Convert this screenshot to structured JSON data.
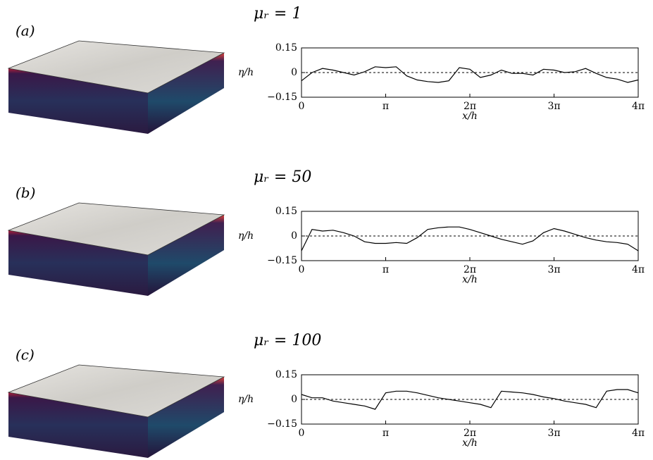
{
  "panel_labels": [
    "(a)",
    "(b)",
    "(c)"
  ],
  "chart_data": [
    {
      "type": "line",
      "title": "μᵣ = 1",
      "x_label": "x/h",
      "y_label": "η/h",
      "x": [
        0,
        0.393,
        0.785,
        1.178,
        1.571,
        1.963,
        2.356,
        2.749,
        3.142,
        3.534,
        3.927,
        4.32,
        4.712,
        5.105,
        5.498,
        5.89,
        6.283,
        6.676,
        7.069,
        7.461,
        7.854,
        8.247,
        8.639,
        9.032,
        9.425,
        9.817,
        10.21,
        10.603,
        10.996,
        11.388,
        11.781,
        12.174,
        12.566
      ],
      "series": [
        {
          "color": "#000000",
          "values": [
            -0.05,
            0.0,
            0.025,
            0.015,
            0.0,
            -0.015,
            0.005,
            0.035,
            0.03,
            0.035,
            -0.02,
            -0.045,
            -0.055,
            -0.06,
            -0.05,
            0.03,
            0.02,
            -0.03,
            -0.015,
            0.015,
            -0.005,
            -0.005,
            -0.015,
            0.02,
            0.015,
            0.0,
            0.005,
            0.025,
            -0.005,
            -0.03,
            -0.04,
            -0.06,
            -0.045
          ]
        }
      ],
      "xlim": [
        0,
        12.566
      ],
      "ylim": [
        -0.15,
        0.15
      ],
      "xticks": [
        0,
        {
          "value": 3.142,
          "label": "π"
        },
        {
          "value": 6.283,
          "label": "2π"
        },
        {
          "value": 9.425,
          "label": "3π"
        },
        {
          "value": 12.566,
          "label": "4π"
        }
      ],
      "yticks": [
        {
          "value": -0.15,
          "label": "−0.15"
        },
        0,
        0.15
      ],
      "hline": 0
    },
    {
      "type": "line",
      "title": "μᵣ = 50",
      "x_label": "x/h",
      "y_label": "η/h",
      "x": [
        0,
        0.393,
        0.785,
        1.178,
        1.571,
        1.963,
        2.356,
        2.749,
        3.142,
        3.534,
        3.927,
        4.32,
        4.712,
        5.105,
        5.498,
        5.89,
        6.283,
        6.676,
        7.069,
        7.461,
        7.854,
        8.247,
        8.639,
        9.032,
        9.425,
        9.817,
        10.21,
        10.603,
        10.996,
        11.388,
        11.781,
        12.174,
        12.566
      ],
      "series": [
        {
          "color": "#000000",
          "values": [
            -0.09,
            0.04,
            0.03,
            0.035,
            0.02,
            0.0,
            -0.035,
            -0.045,
            -0.045,
            -0.04,
            -0.045,
            -0.01,
            0.04,
            0.05,
            0.055,
            0.055,
            0.04,
            0.02,
            0.0,
            -0.02,
            -0.035,
            -0.05,
            -0.03,
            0.02,
            0.045,
            0.03,
            0.01,
            -0.01,
            -0.025,
            -0.035,
            -0.04,
            -0.05,
            -0.09
          ]
        }
      ],
      "xlim": [
        0,
        12.566
      ],
      "ylim": [
        -0.15,
        0.15
      ],
      "xticks": [
        0,
        {
          "value": 3.142,
          "label": "π"
        },
        {
          "value": 6.283,
          "label": "2π"
        },
        {
          "value": 9.425,
          "label": "3π"
        },
        {
          "value": 12.566,
          "label": "4π"
        }
      ],
      "yticks": [
        {
          "value": -0.15,
          "label": "−0.15"
        },
        0,
        0.15
      ],
      "hline": 0
    },
    {
      "type": "line",
      "title": "μᵣ = 100",
      "x_label": "x/h",
      "y_label": "η/h",
      "x": [
        0,
        0.393,
        0.785,
        1.178,
        1.571,
        1.963,
        2.356,
        2.749,
        3.142,
        3.534,
        3.927,
        4.32,
        4.712,
        5.105,
        5.498,
        5.89,
        6.283,
        6.676,
        7.069,
        7.461,
        7.854,
        8.247,
        8.639,
        9.032,
        9.425,
        9.817,
        10.21,
        10.603,
        10.996,
        11.388,
        11.781,
        12.174,
        12.566
      ],
      "series": [
        {
          "color": "#000000",
          "values": [
            0.03,
            0.01,
            0.01,
            -0.01,
            -0.02,
            -0.03,
            -0.04,
            -0.06,
            0.04,
            0.05,
            0.05,
            0.04,
            0.025,
            0.01,
            0.0,
            -0.01,
            -0.02,
            -0.03,
            -0.05,
            0.05,
            0.045,
            0.04,
            0.03,
            0.015,
            0.005,
            -0.01,
            -0.02,
            -0.03,
            -0.05,
            0.05,
            0.06,
            0.06,
            0.04
          ]
        }
      ],
      "xlim": [
        0,
        12.566
      ],
      "ylim": [
        -0.15,
        0.15
      ],
      "xticks": [
        0,
        {
          "value": 3.142,
          "label": "π"
        },
        {
          "value": 6.283,
          "label": "2π"
        },
        {
          "value": 9.425,
          "label": "3π"
        },
        {
          "value": 12.566,
          "label": "4π"
        }
      ],
      "yticks": [
        {
          "value": -0.15,
          "label": "−0.15"
        },
        0,
        0.15
      ],
      "hline": 0
    }
  ]
}
